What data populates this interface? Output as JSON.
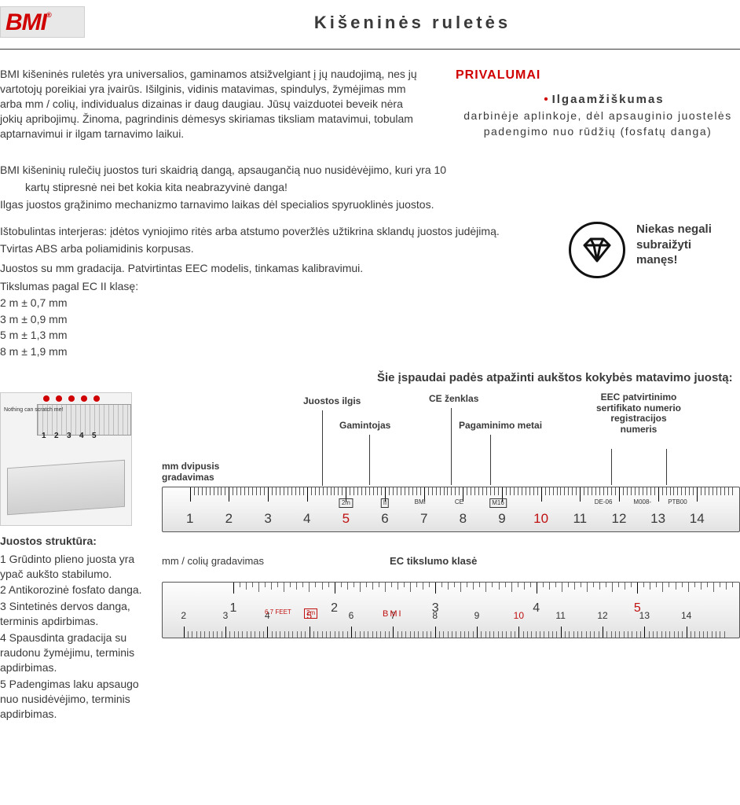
{
  "logo": {
    "text": "BMI",
    "reg": "®"
  },
  "title": "Kišeninės ruletės",
  "intro": "BMI kišeninės ruletės yra universalios, gaminamos atsižvelgiant į jų naudojimą, nes jų vartotojų poreikiai yra įvairūs. Išilginis, vidinis matavimas, spindulys, žymėjimas mm  arba mm / colių, individualus dizainas ir daug daugiau. Jūsų vaizduotei beveik nėra jokių apribojimų. Žinoma, pagrindinis dėmesys skiriamas tiksliam matavimui, tobulam aptarnavimui ir ilgam tarnavimo laikui.",
  "advantages": {
    "title": "PRIVALUMAI",
    "headline": "Ilgaamžiškumas",
    "body": "darbinėje aplinkoje, dėl apsauginio juostelės padengimo nuo rūdžių (fosfatų danga)"
  },
  "bullets": {
    "b1a": "BMI kišeninių rulečių juostos turi skaidrią dangą, apsaugančią nuo nusidėvėjimo, kuri yra 10",
    "b1b": "kartų stipresnė nei bet kokia kita neabrazyvinė danga!",
    "b2": "Ilgas juostos grąžinimo mechanizmo tarnavimo laikas dėl specialios spyruoklinės juostos.",
    "b3": "Ištobulintas interjeras: įdėtos vyniojimo ritės arba atstumo poveržlės užtikrina sklandų juostos judėjimą.",
    "b4": "Tvirtas ABS arba poliamidinis korpusas.",
    "b5": "Juostos su mm gradacija. Patvirtintas EEC modelis, tinkamas kalibravimui.",
    "b6": "Tikslumas pagal EC II klasę:"
  },
  "accuracy": {
    "a1": "2 m ± 0,7 mm",
    "a2": "3 m ± 0,9 mm",
    "a3": "5 m ± 1,3 mm",
    "a4": "8 m ± 1,9 mm"
  },
  "no_scratch": "Niekas negali subraižyti manęs!",
  "stamps_note": "Šie įspaudai padės atpažinti aukštos kokybės matavimo juostą:",
  "callouts": {
    "c1": "mm  dvipusis gradavimas",
    "c2": "Juostos ilgis",
    "c3": "Gamintojas",
    "c4": "CE ženklas",
    "c5": "Pagaminimo metai",
    "c6": "EEC patvirtinimo sertifikato numerio registracijos numeris"
  },
  "lower_labels": {
    "l1": "mm / colių gradavimas",
    "l2": "EC tikslumo klasė"
  },
  "ruler1": {
    "numbers": [
      1,
      2,
      3,
      4,
      5,
      6,
      7,
      8,
      9,
      10,
      11,
      12,
      13,
      14
    ],
    "red_every": 5,
    "midmarks": {
      "pos5": "2m",
      "posII": "II",
      "posBMI": "BMI",
      "posCE": "CE",
      "posM": "M16",
      "posDE": "DE-06",
      "posMx": "M008-",
      "posPT": "PTB00"
    }
  },
  "ruler2": {
    "inches": [
      1,
      2,
      3,
      4,
      5
    ],
    "inches_red": 5,
    "feet_label": "6.7 FEET",
    "len": "2m",
    "brand": "BMI",
    "mm": [
      2,
      3,
      4,
      5,
      6,
      7,
      8,
      9,
      10,
      11,
      12,
      13,
      14
    ]
  },
  "structure": {
    "title": "Juostos struktūra:",
    "items": [
      "1 Grūdinto plieno juosta yra ypač aukšto stabilumo.",
      "2 Antikorozinė fosfato danga.",
      "3 Sintetinės dervos danga, terminis apdirbimas.",
      "4 Spausdinta gradacija su raudonu žymėjimu, terminis apdirbimas.",
      "5 Padengimas laku apsaugo nuo nusidėvėjimo, terminis apdirbimas."
    ],
    "thumb_text": "Nothing can scratch me!"
  },
  "colors": {
    "brand": "#d00000",
    "text": "#3a3a3a",
    "ruler_red": "#c01010"
  }
}
